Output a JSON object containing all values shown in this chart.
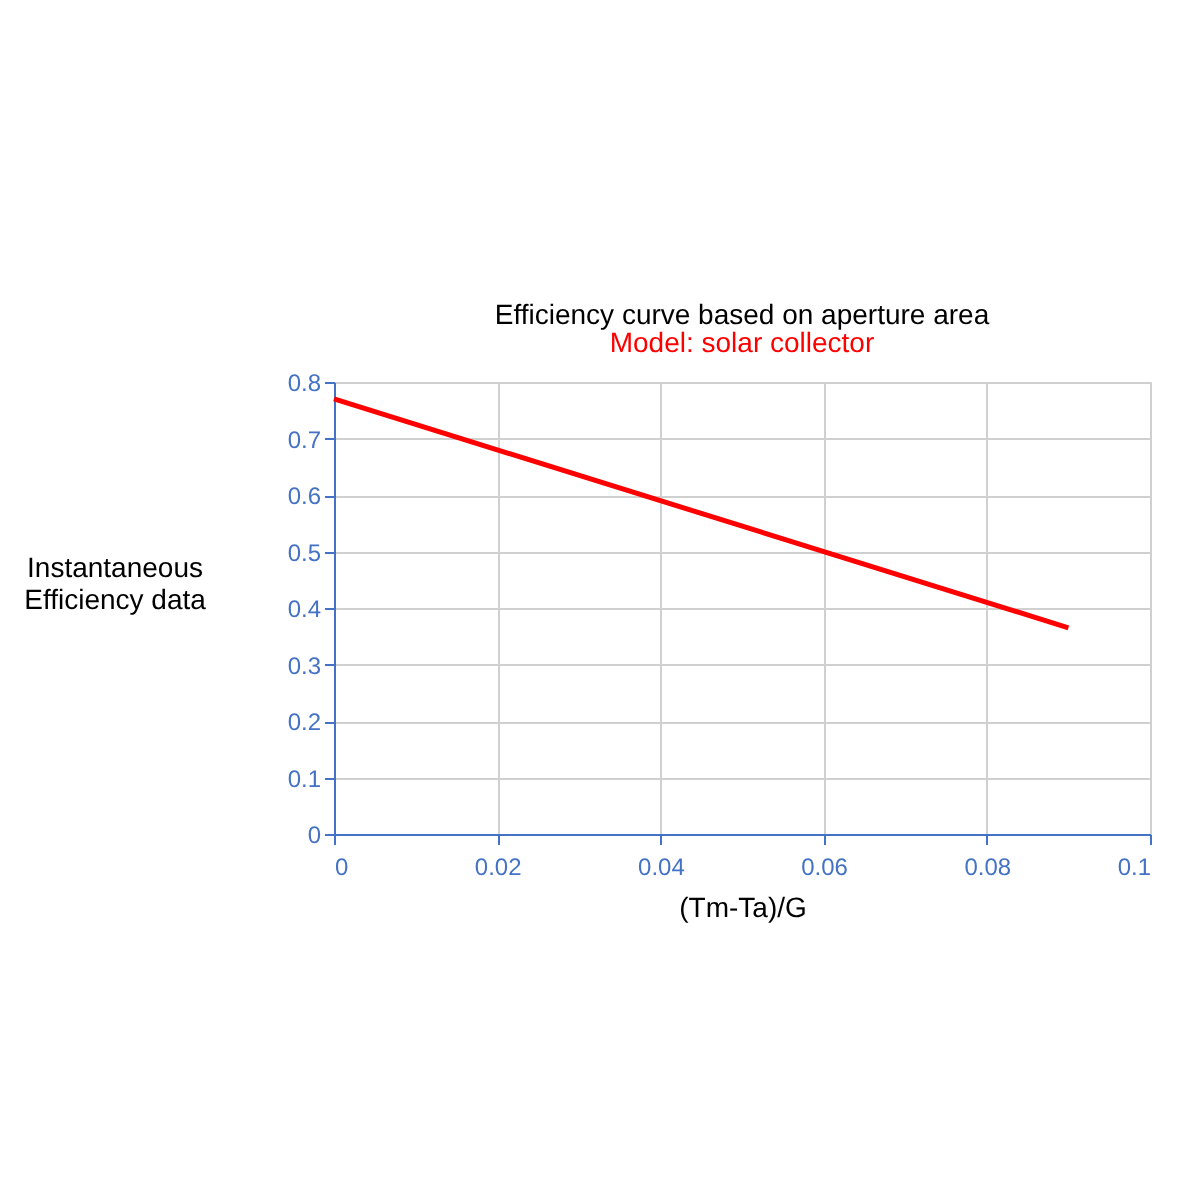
{
  "chart_data": {
    "type": "line",
    "title": "Efficiency curve based on aperture  area",
    "subtitle": "Model: solar collector",
    "xlabel": "(Tm-Ta)/G",
    "ylabel": "Instantaneous\nEfficiency data",
    "x": [
      0,
      0.09
    ],
    "series": [
      {
        "color": "#ff0000",
        "values": [
          0.77,
          0.365
        ]
      }
    ],
    "xlim": [
      0,
      0.1
    ],
    "xticks": [
      0,
      0.02,
      0.04,
      0.06,
      0.08,
      0.1
    ],
    "ylim": [
      0,
      0.8
    ],
    "yticks": [
      0,
      0.1,
      0.2,
      0.3,
      0.4,
      0.5,
      0.6,
      0.7,
      0.8
    ],
    "grid": true,
    "marker": "none",
    "line_style": "solid",
    "legend": false
  }
}
